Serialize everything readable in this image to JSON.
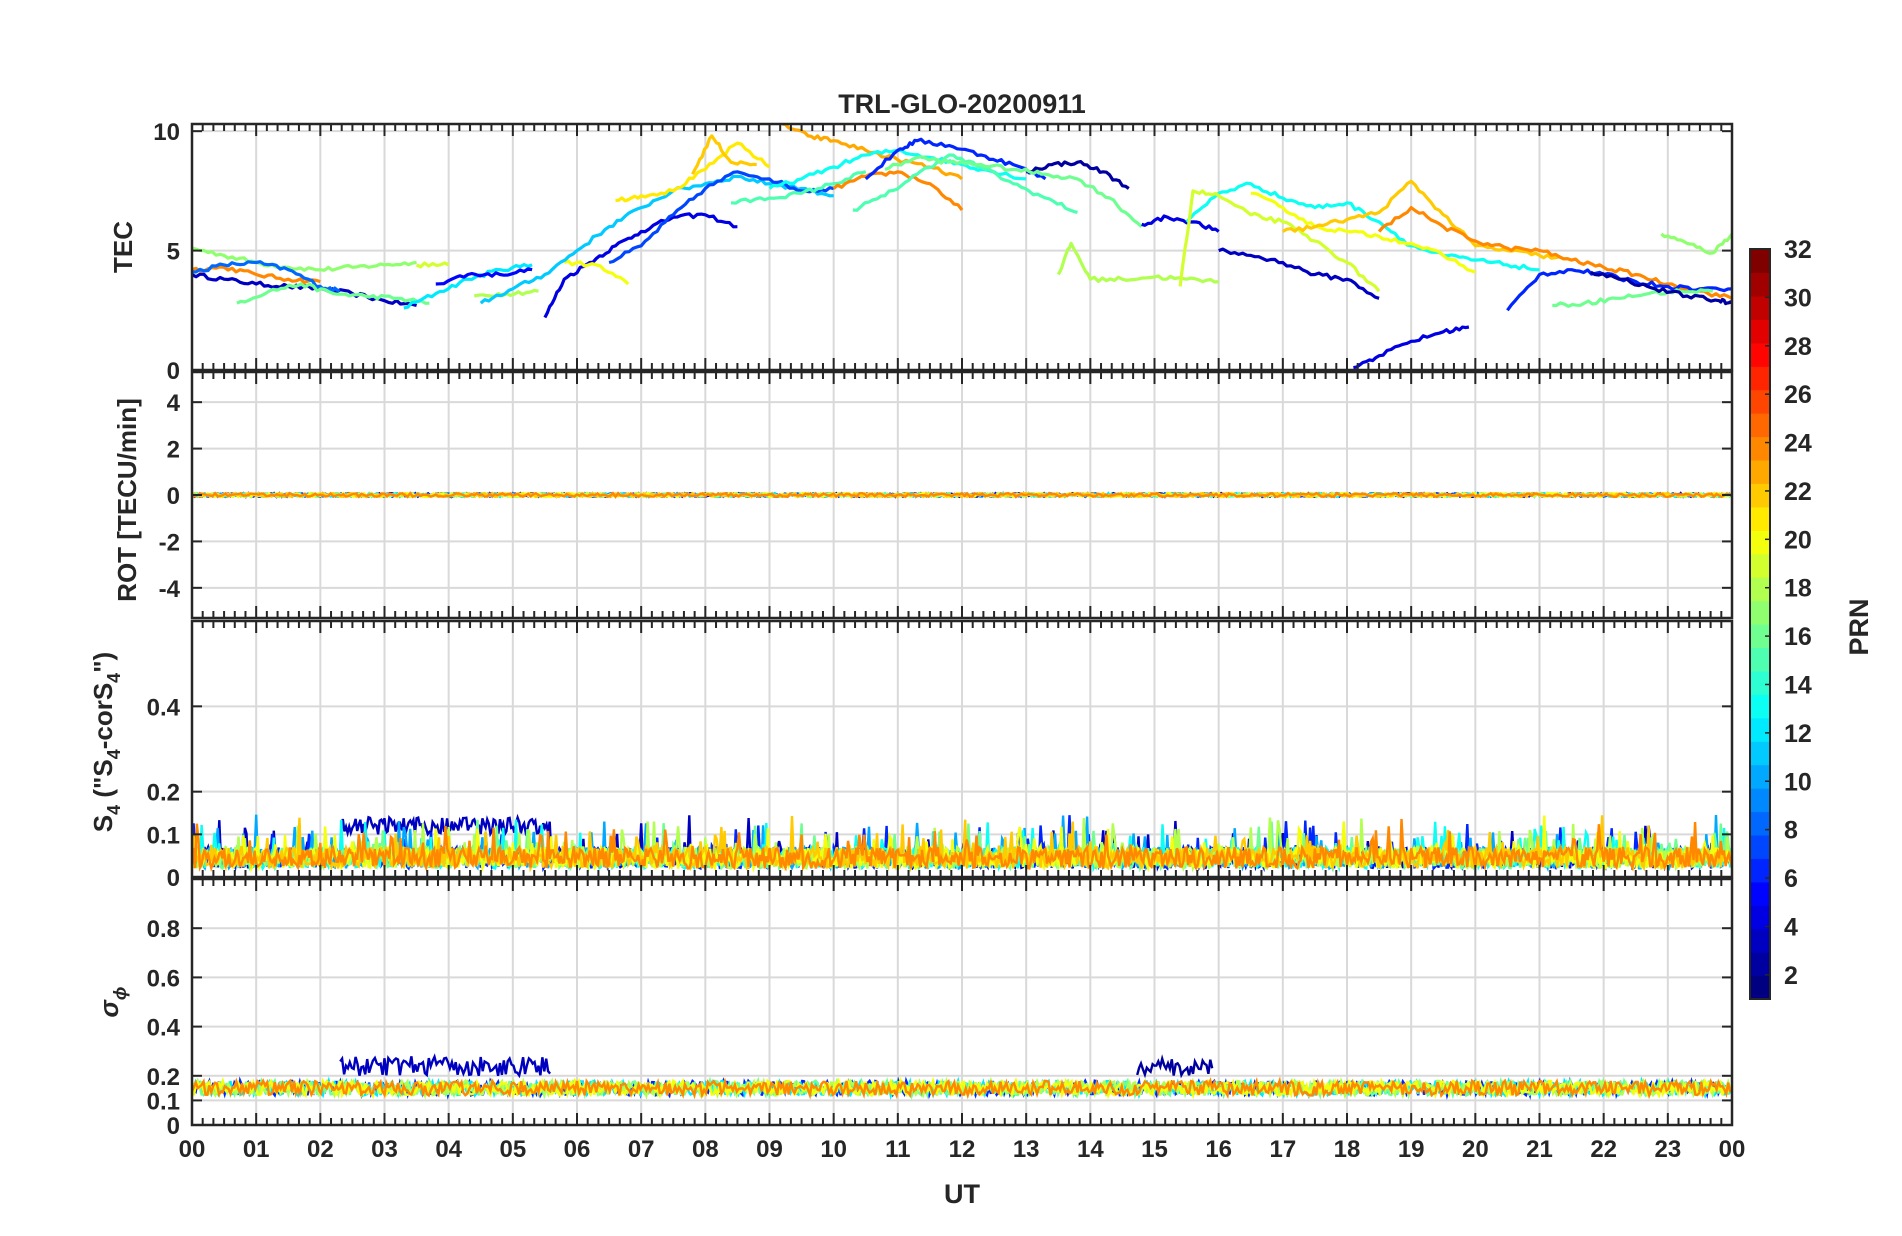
{
  "chart_data": {
    "type": "line",
    "title": "TRL-GLO-20200911",
    "xlabel": "UT",
    "x_ticks": [
      "00",
      "01",
      "02",
      "03",
      "04",
      "05",
      "06",
      "07",
      "08",
      "09",
      "10",
      "11",
      "12",
      "13",
      "14",
      "15",
      "16",
      "17",
      "18",
      "19",
      "20",
      "21",
      "22",
      "23",
      "00"
    ],
    "xlim": [
      0,
      24
    ],
    "grid": true,
    "panels": [
      {
        "name": "tec",
        "ylabel": "TEC",
        "ylim": [
          0,
          10.3
        ],
        "yticks": [
          0,
          5,
          10
        ],
        "series": [
          {
            "prn": 3,
            "x": [
              0,
              0.5,
              1,
              1.5,
              2,
              2.5,
              3,
              3.5
            ],
            "y": [
              4.0,
              3.8,
              3.6,
              3.5,
              3.4,
              3.2,
              2.9,
              2.7
            ]
          },
          {
            "prn": 17,
            "x": [
              0,
              0.5,
              1,
              1.5,
              2,
              2.5,
              3,
              3.5
            ],
            "y": [
              5.1,
              4.8,
              4.5,
              4.3,
              4.2,
              4.3,
              4.4,
              4.5
            ]
          },
          {
            "prn": 24,
            "x": [
              0,
              0.5,
              1,
              1.5,
              2
            ],
            "y": [
              4.2,
              4.3,
              4.0,
              3.8,
              3.7
            ]
          },
          {
            "prn": 8,
            "x": [
              0,
              0.5,
              1,
              1.5,
              2,
              2.3
            ],
            "y": [
              4.1,
              4.4,
              4.5,
              4.2,
              3.5,
              3.3
            ]
          },
          {
            "prn": 16,
            "x": [
              0.7,
              1.2,
              1.7,
              2.2,
              2.7,
              3.2,
              3.7
            ],
            "y": [
              2.8,
              3.3,
              3.6,
              3.2,
              3.1,
              3.0,
              2.8
            ]
          },
          {
            "prn": 12,
            "x": [
              3.3,
              3.8,
              4.3,
              4.8,
              5.3
            ],
            "y": [
              2.6,
              3.2,
              3.8,
              4.2,
              4.4
            ]
          },
          {
            "prn": 5,
            "x": [
              3.8,
              4.3,
              4.8,
              5.3
            ],
            "y": [
              3.6,
              4.0,
              4.0,
              4.2
            ]
          },
          {
            "prn": 19,
            "x": [
              3.5,
              4.0
            ],
            "y": [
              4.4,
              4.4
            ]
          },
          {
            "prn": 18,
            "x": [
              4.4,
              4.9,
              5.4
            ],
            "y": [
              3.1,
              3.2,
              3.3
            ]
          },
          {
            "prn": 4,
            "x": [
              5.5,
              5.8,
              6.2,
              6.6,
              7.0,
              7.5,
              8.0,
              8.5
            ],
            "y": [
              2.2,
              3.8,
              4.5,
              5.2,
              5.8,
              6.4,
              6.5,
              6.0
            ]
          },
          {
            "prn": 20,
            "x": [
              5.8,
              6.3,
              6.8
            ],
            "y": [
              4.5,
              4.4,
              3.6
            ]
          },
          {
            "prn": 11,
            "x": [
              4.5,
              5.0,
              5.5,
              6.0,
              6.5,
              7.0,
              7.5,
              8.0,
              8.5,
              9.0,
              9.5,
              10.0
            ],
            "y": [
              2.8,
              3.4,
              4.0,
              5.0,
              6.0,
              6.8,
              7.5,
              7.8,
              8.1,
              7.8,
              7.6,
              7.3
            ]
          },
          {
            "prn": 7,
            "x": [
              6.5,
              7.0,
              7.5,
              8.0,
              8.5,
              9.0,
              9.5,
              10.0
            ],
            "y": [
              4.5,
              5.2,
              6.5,
              7.6,
              8.3,
              8.0,
              7.5,
              7.6
            ]
          },
          {
            "prn": 21,
            "x": [
              6.6,
              7.0,
              7.5,
              8.0,
              8.5,
              9.0
            ],
            "y": [
              7.1,
              7.3,
              7.5,
              8.4,
              9.5,
              8.5
            ]
          },
          {
            "prn": 22,
            "x": [
              7.8,
              8.1,
              8.4,
              8.8
            ],
            "y": [
              8.2,
              9.8,
              8.7,
              8.6
            ]
          },
          {
            "prn": 15,
            "x": [
              8.4,
              9.0,
              9.5,
              10.0,
              10.5
            ],
            "y": [
              7.0,
              7.2,
              7.4,
              7.8,
              8.3
            ]
          },
          {
            "prn": 23,
            "x": [
              9.2,
              9.6,
              10.0,
              10.5,
              11.0,
              11.5,
              12.0
            ],
            "y": [
              10.3,
              9.8,
              9.6,
              9.2,
              8.8,
              8.5,
              8.0
            ]
          },
          {
            "prn": 24,
            "x": [
              10.0,
              10.5,
              11.0,
              11.5,
              12.0
            ],
            "y": [
              7.6,
              8.1,
              8.3,
              7.8,
              6.7
            ]
          },
          {
            "prn": 13,
            "x": [
              9.0,
              9.5,
              10.0,
              10.5,
              11.0,
              11.5,
              12.0,
              12.5,
              13.0
            ],
            "y": [
              7.6,
              8.0,
              8.5,
              9.0,
              9.2,
              8.9,
              8.6,
              8.3,
              8.0
            ]
          },
          {
            "prn": 6,
            "x": [
              10.5,
              11.0,
              11.3,
              11.8,
              12.3,
              12.8,
              13.3
            ],
            "y": [
              8.0,
              9.2,
              9.6,
              9.4,
              9.0,
              8.6,
              8.0
            ]
          },
          {
            "prn": 2,
            "x": [
              13.0,
              13.4,
              13.8,
              14.2,
              14.6
            ],
            "y": [
              8.3,
              8.6,
              8.7,
              8.3,
              7.6
            ]
          },
          {
            "prn": 15,
            "x": [
              10.3,
              10.8,
              11.3,
              11.8,
              12.3,
              12.8,
              13.3,
              13.8
            ],
            "y": [
              6.7,
              7.3,
              8.2,
              9.0,
              8.5,
              7.8,
              7.2,
              6.6
            ]
          },
          {
            "prn": 16,
            "x": [
              10.8,
              11.3,
              11.8,
              12.3,
              12.8,
              13.3,
              13.8,
              14.3,
              14.8
            ],
            "y": [
              8.4,
              8.9,
              8.7,
              8.6,
              8.4,
              8.2,
              8.0,
              7.2,
              6.0
            ]
          },
          {
            "prn": 18,
            "x": [
              13.5,
              13.7,
              14.0,
              14.5,
              15.0,
              15.5,
              16.0
            ],
            "y": [
              4.0,
              5.3,
              3.8,
              3.8,
              3.9,
              3.8,
              3.7
            ]
          },
          {
            "prn": 4,
            "x": [
              14.8,
              15.2,
              15.6,
              16.0
            ],
            "y": [
              6.1,
              6.4,
              6.2,
              5.8
            ]
          },
          {
            "prn": 3,
            "x": [
              16.0,
              16.5,
              17.0,
              17.5,
              18.0,
              18.5
            ],
            "y": [
              5.0,
              4.8,
              4.5,
              4.0,
              3.8,
              3.0
            ]
          },
          {
            "prn": 13,
            "x": [
              15.5,
              16.0,
              16.5,
              17.0,
              17.5,
              18.0,
              18.5,
              19.0,
              19.5,
              20.0,
              20.5,
              21.0
            ],
            "y": [
              6.2,
              7.4,
              7.8,
              7.2,
              6.8,
              7.0,
              6.2,
              5.2,
              4.8,
              4.6,
              4.4,
              4.2
            ]
          },
          {
            "prn": 19,
            "x": [
              15.4,
              15.6,
              16.0,
              16.5,
              17.0,
              17.5,
              18.0,
              18.5
            ],
            "y": [
              3.5,
              7.5,
              7.3,
              6.5,
              6.2,
              5.4,
              4.5,
              3.3
            ]
          },
          {
            "prn": 20,
            "x": [
              16.5,
              17.0,
              17.5,
              18.0,
              18.5,
              19.0,
              19.5,
              20.0
            ],
            "y": [
              7.4,
              6.8,
              6.0,
              5.8,
              5.6,
              5.3,
              4.8,
              4.1
            ]
          },
          {
            "prn": 22,
            "x": [
              17.0,
              17.5,
              18.0,
              18.5,
              19.0,
              19.5,
              20.0,
              20.5,
              21.0,
              21.5
            ],
            "y": [
              5.8,
              6.0,
              6.3,
              6.6,
              7.9,
              6.5,
              5.2,
              5.0,
              4.8,
              4.6
            ]
          },
          {
            "prn": 24,
            "x": [
              18.5,
              19.0,
              19.5,
              20.0,
              20.5,
              21.0,
              21.5,
              22.0,
              22.5,
              23.0,
              23.5,
              24.0
            ],
            "y": [
              5.8,
              6.8,
              6.0,
              5.4,
              5.1,
              5.0,
              4.6,
              4.3,
              4.0,
              3.6,
              3.3,
              3.0
            ]
          },
          {
            "prn": 4,
            "x": [
              18.1,
              18.5,
              19.0,
              19.5,
              19.9
            ],
            "y": [
              0.1,
              0.6,
              1.2,
              1.6,
              1.8
            ]
          },
          {
            "prn": 6,
            "x": [
              20.5,
              21.0,
              21.5,
              22.0,
              22.5,
              23.0,
              23.5,
              24.0
            ],
            "y": [
              2.5,
              4.0,
              4.2,
              4.0,
              3.7,
              3.5,
              3.4,
              3.4
            ]
          },
          {
            "prn": 16,
            "x": [
              21.2,
              21.7,
              22.2,
              22.7,
              23.2,
              23.7
            ],
            "y": [
              2.7,
              2.8,
              3.0,
              3.2,
              3.3,
              3.3
            ]
          },
          {
            "prn": 17,
            "x": [
              22.9,
              23.3,
              23.7,
              24.0
            ],
            "y": [
              5.7,
              5.3,
              4.9,
              5.7
            ]
          },
          {
            "prn": 2,
            "x": [
              21.8,
              22.3,
              22.8,
              23.3,
              23.8,
              24.0
            ],
            "y": [
              4.1,
              3.8,
              3.4,
              3.1,
              2.9,
              2.8
            ]
          }
        ]
      },
      {
        "name": "rot",
        "ylabel": "ROT [TECU/min]",
        "ylim": [
          -5.3,
          5.3
        ],
        "yticks": [
          -4,
          -2,
          0,
          2,
          4
        ],
        "series_note": "near-zero noisy traces for all PRNs",
        "noise_amplitude": 0.08,
        "baseline": 0
      },
      {
        "name": "s4",
        "ylabel_parts": [
          "S",
          "4",
          " (\"S",
          "4",
          "-corS",
          "4",
          "\")"
        ],
        "ylim": [
          0,
          0.6
        ],
        "yticks": [
          0,
          0.1,
          0.2,
          0.4
        ],
        "series_note": "dense noisy traces for all PRNs",
        "baseline_low": 0.02,
        "baseline_high": 0.12,
        "bursts": [
          {
            "prn": 3,
            "x": [
              2.3,
              5.6
            ],
            "level": 0.12
          }
        ]
      },
      {
        "name": "sigma",
        "ylabel_parts": [
          "σ",
          "ϕ"
        ],
        "ylim": [
          0,
          1
        ],
        "yticks": [
          0,
          0.1,
          0.2,
          0.4,
          0.6,
          0.8
        ],
        "baseline": 0.15,
        "bursts": [
          {
            "prn": 3,
            "x": [
              2.3,
              5.6
            ],
            "level": 0.24
          },
          {
            "prn": 2,
            "x": [
              14.7,
              15.9
            ],
            "level": 0.24
          }
        ]
      }
    ],
    "colorbar": {
      "label": "PRN",
      "range": [
        1,
        32
      ],
      "ticks": [
        2,
        4,
        6,
        8,
        10,
        12,
        14,
        16,
        18,
        20,
        22,
        24,
        26,
        28,
        30,
        32
      ],
      "colormap": "jet"
    }
  }
}
